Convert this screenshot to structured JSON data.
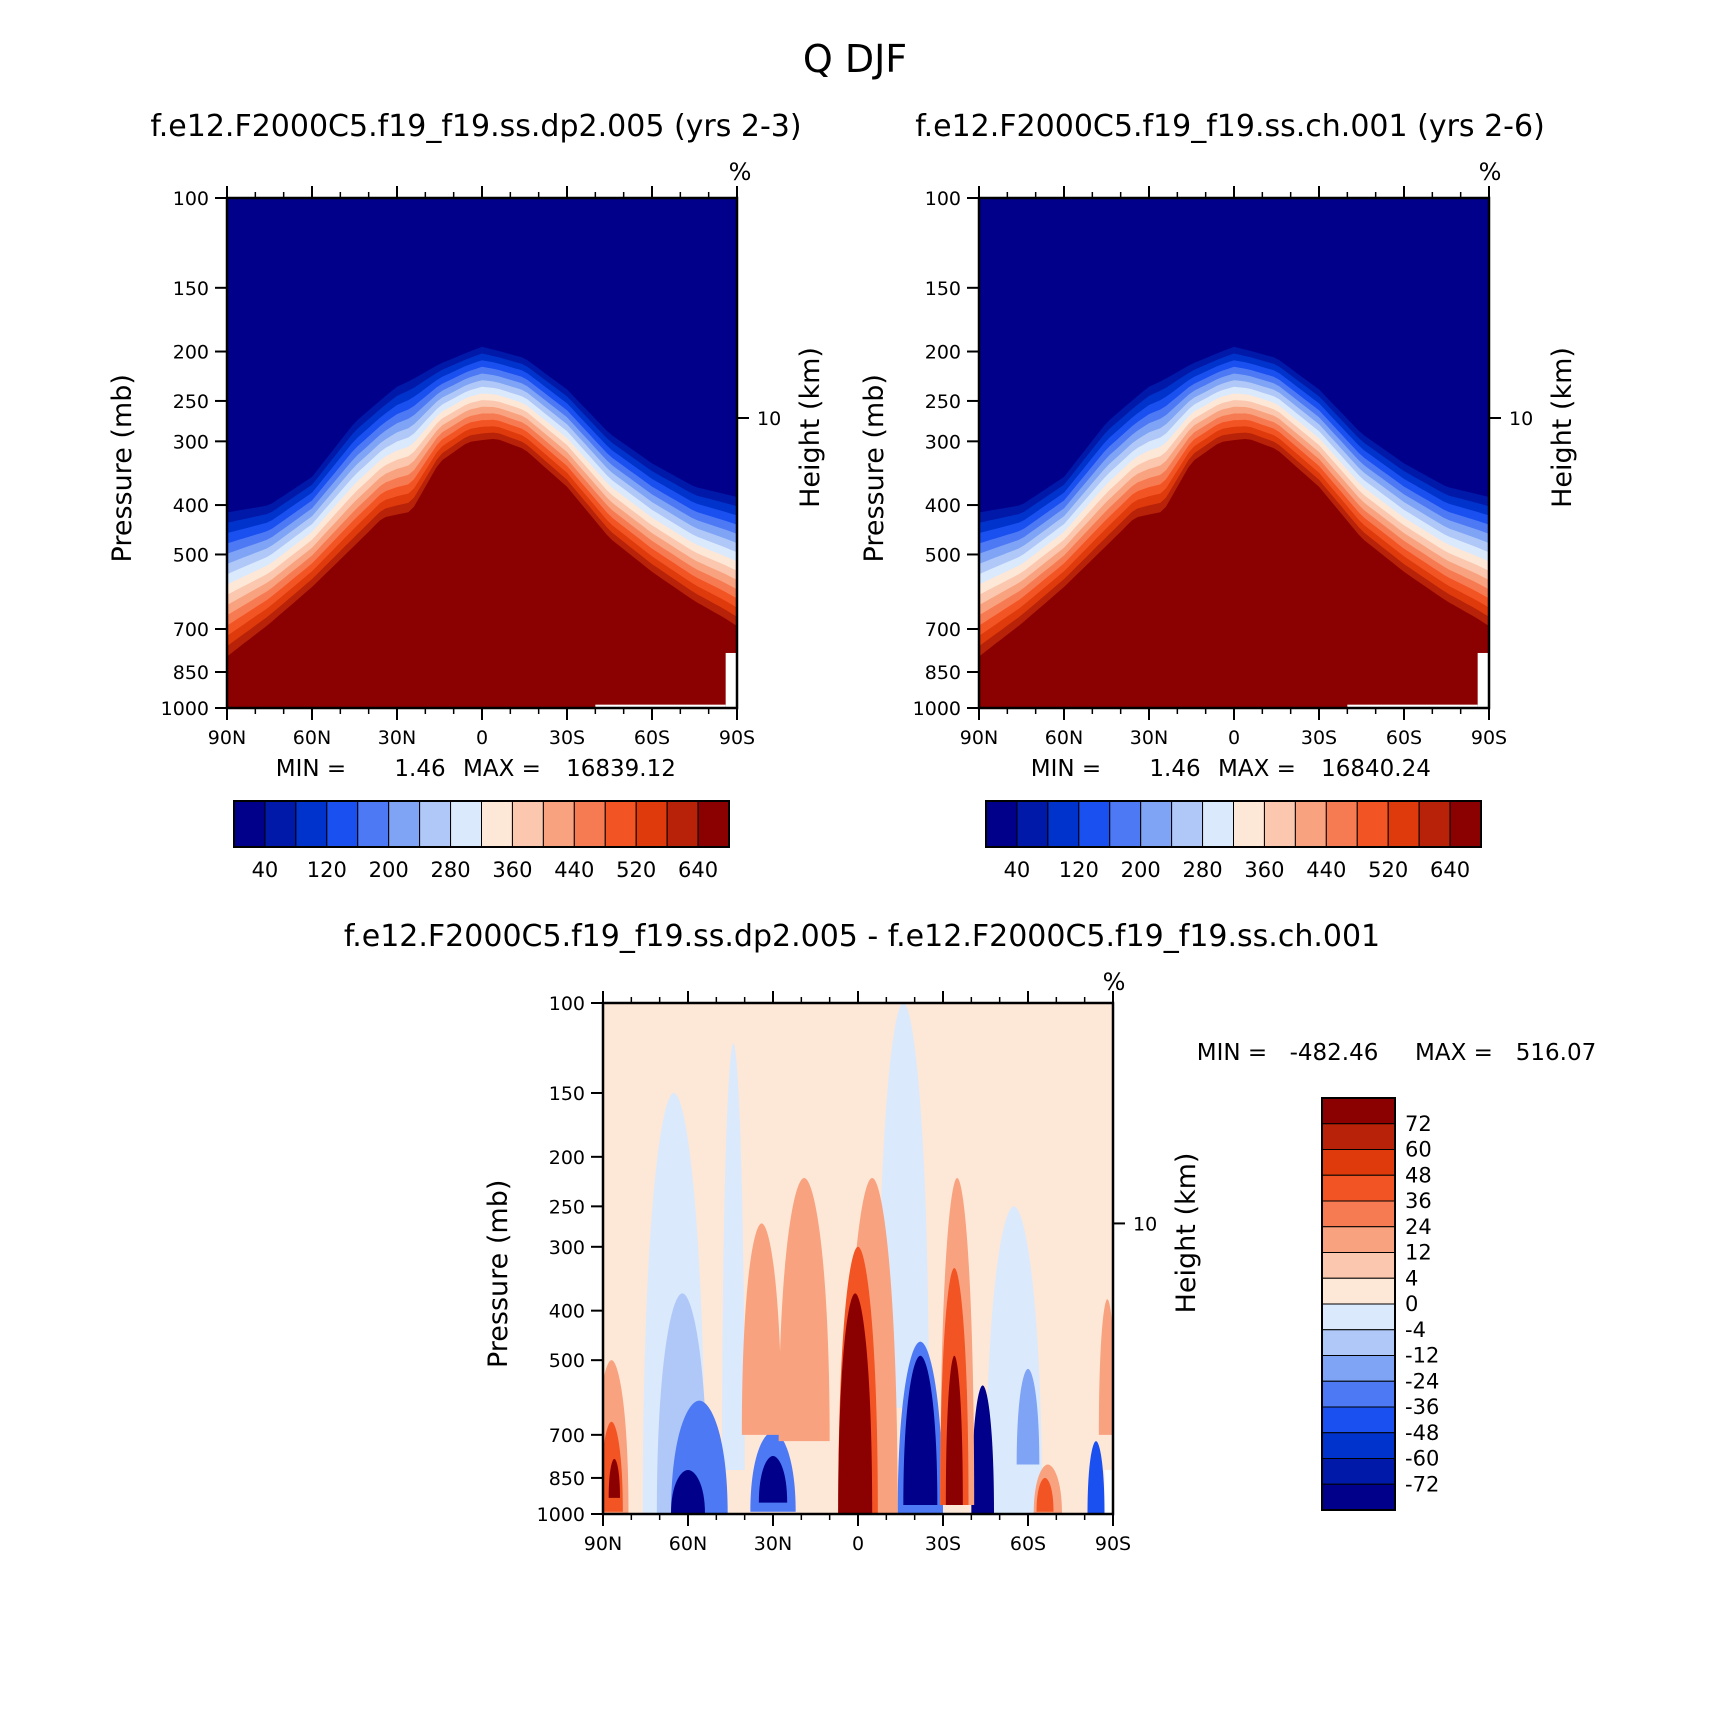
{
  "figure_title": "Q DJF",
  "chart_data": [
    {
      "type": "contour",
      "id": "left",
      "title": "f.e12.F2000C5.f19_f19.ss.dp2.005 (yrs 2-3)",
      "units": "%",
      "xlabel": "",
      "ylabel": "Pressure (mb)",
      "ylabel_right": "Height (km)",
      "x_ticks": [
        "90N",
        "60N",
        "30N",
        "0",
        "30S",
        "60S",
        "90S"
      ],
      "x_values": [
        90,
        60,
        30,
        0,
        -30,
        -60,
        -90
      ],
      "y_ticks": [
        100,
        150,
        200,
        250,
        300,
        400,
        500,
        700,
        850,
        1000
      ],
      "ylim": [
        1000,
        100
      ],
      "right_ticks": [
        {
          "label": "10",
          "pressure": 270
        }
      ],
      "min_label": "MIN =",
      "min": "1.46",
      "max_label": "MAX =",
      "max": "16839.12",
      "colorbar": {
        "orientation": "horizontal",
        "levels": [
          20,
          40,
          80,
          120,
          160,
          200,
          240,
          280,
          320,
          360,
          400,
          440,
          480,
          520,
          560,
          600,
          640
        ],
        "labels": [
          "40",
          "120",
          "200",
          "280",
          "360",
          "440",
          "520",
          "640"
        ],
        "colors": [
          "#00008b",
          "#0019a8",
          "#0033cc",
          "#1a4ff0",
          "#4d79f5",
          "#7fa3f5",
          "#b0c8f8",
          "#dbe9fc",
          "#fde8d8",
          "#fbc7ae",
          "#f9a27f",
          "#f77b52",
          "#f35424",
          "#df3a0c",
          "#b82208",
          "#8b0000"
        ]
      },
      "fields": {
        "tropo_tropopause_pressure": [
          {
            "lat": 90,
            "p": 395
          },
          {
            "lat": 75,
            "p": 385
          },
          {
            "lat": 60,
            "p": 340
          },
          {
            "lat": 45,
            "p": 265
          },
          {
            "lat": 30,
            "p": 225
          },
          {
            "lat": 15,
            "p": 205
          },
          {
            "lat": 0,
            "p": 190
          },
          {
            "lat": -15,
            "p": 200
          },
          {
            "lat": -30,
            "p": 230
          },
          {
            "lat": -45,
            "p": 280
          },
          {
            "lat": -60,
            "p": 320
          },
          {
            "lat": -75,
            "p": 355
          },
          {
            "lat": -90,
            "p": 370
          }
        ],
        "moist_boundary_pressure": [
          {
            "lat": 90,
            "p": 830
          },
          {
            "lat": 75,
            "p": 710
          },
          {
            "lat": 60,
            "p": 600
          },
          {
            "lat": 45,
            "p": 500
          },
          {
            "lat": 35,
            "p": 440
          },
          {
            "lat": 25,
            "p": 430
          },
          {
            "lat": 15,
            "p": 340
          },
          {
            "lat": 5,
            "p": 310
          },
          {
            "lat": -5,
            "p": 305
          },
          {
            "lat": -15,
            "p": 320
          },
          {
            "lat": -30,
            "p": 380
          },
          {
            "lat": -45,
            "p": 480
          },
          {
            "lat": -60,
            "p": 560
          },
          {
            "lat": -75,
            "p": 640
          },
          {
            "lat": -85,
            "p": 690
          },
          {
            "lat": -90,
            "p": 720
          }
        ],
        "transition_width": 95
      }
    },
    {
      "type": "contour",
      "id": "right",
      "title": "f.e12.F2000C5.f19_f19.ss.ch.001 (yrs 2-6)",
      "units": "%",
      "xlabel": "",
      "ylabel": "Pressure (mb)",
      "ylabel_right": "Height (km)",
      "x_ticks": [
        "90N",
        "60N",
        "30N",
        "0",
        "30S",
        "60S",
        "90S"
      ],
      "x_values": [
        90,
        60,
        30,
        0,
        -30,
        -60,
        -90
      ],
      "y_ticks": [
        100,
        150,
        200,
        250,
        300,
        400,
        500,
        700,
        850,
        1000
      ],
      "ylim": [
        1000,
        100
      ],
      "right_ticks": [
        {
          "label": "10",
          "pressure": 270
        }
      ],
      "min_label": "MIN =",
      "min": "1.46",
      "max_label": "MAX =",
      "max": "16840.24",
      "colorbar": {
        "orientation": "horizontal",
        "levels": [
          20,
          40,
          80,
          120,
          160,
          200,
          240,
          280,
          320,
          360,
          400,
          440,
          480,
          520,
          560,
          600,
          640
        ],
        "labels": [
          "40",
          "120",
          "200",
          "280",
          "360",
          "440",
          "520",
          "640"
        ],
        "colors": [
          "#00008b",
          "#0019a8",
          "#0033cc",
          "#1a4ff0",
          "#4d79f5",
          "#7fa3f5",
          "#b0c8f8",
          "#dbe9fc",
          "#fde8d8",
          "#fbc7ae",
          "#f9a27f",
          "#f77b52",
          "#f35424",
          "#df3a0c",
          "#b82208",
          "#8b0000"
        ]
      },
      "fields": {
        "tropo_tropopause_pressure": [
          {
            "lat": 90,
            "p": 395
          },
          {
            "lat": 75,
            "p": 385
          },
          {
            "lat": 60,
            "p": 340
          },
          {
            "lat": 45,
            "p": 265
          },
          {
            "lat": 30,
            "p": 225
          },
          {
            "lat": 15,
            "p": 205
          },
          {
            "lat": 0,
            "p": 190
          },
          {
            "lat": -15,
            "p": 200
          },
          {
            "lat": -30,
            "p": 230
          },
          {
            "lat": -45,
            "p": 280
          },
          {
            "lat": -60,
            "p": 320
          },
          {
            "lat": -75,
            "p": 355
          },
          {
            "lat": -90,
            "p": 370
          }
        ],
        "moist_boundary_pressure": [
          {
            "lat": 90,
            "p": 830
          },
          {
            "lat": 75,
            "p": 710
          },
          {
            "lat": 60,
            "p": 600
          },
          {
            "lat": 45,
            "p": 500
          },
          {
            "lat": 35,
            "p": 440
          },
          {
            "lat": 25,
            "p": 430
          },
          {
            "lat": 15,
            "p": 340
          },
          {
            "lat": 5,
            "p": 310
          },
          {
            "lat": -5,
            "p": 305
          },
          {
            "lat": -15,
            "p": 320
          },
          {
            "lat": -30,
            "p": 380
          },
          {
            "lat": -45,
            "p": 480
          },
          {
            "lat": -60,
            "p": 560
          },
          {
            "lat": -75,
            "p": 640
          },
          {
            "lat": -85,
            "p": 690
          },
          {
            "lat": -90,
            "p": 720
          }
        ],
        "transition_width": 95
      }
    },
    {
      "type": "contour",
      "id": "diff",
      "title": "f.e12.F2000C5.f19_f19.ss.dp2.005 - f.e12.F2000C5.f19_f19.ss.ch.001",
      "units": "%",
      "xlabel": "",
      "ylabel": "Pressure (mb)",
      "ylabel_right": "Height (km)",
      "x_ticks": [
        "90N",
        "60N",
        "30N",
        "0",
        "30S",
        "60S",
        "90S"
      ],
      "x_values": [
        90,
        60,
        30,
        0,
        -30,
        -60,
        -90
      ],
      "y_ticks": [
        100,
        150,
        200,
        250,
        300,
        400,
        500,
        700,
        850,
        1000
      ],
      "ylim": [
        1000,
        100
      ],
      "right_ticks": [
        {
          "label": "10",
          "pressure": 270
        }
      ],
      "min_label": "MIN =",
      "min": "-482.46",
      "max_label": "MAX =",
      "max": "516.07",
      "colorbar": {
        "orientation": "vertical",
        "labels": [
          "72",
          "60",
          "48",
          "36",
          "24",
          "12",
          "4",
          "0",
          "-4",
          "-12",
          "-24",
          "-36",
          "-48",
          "-60",
          "-72"
        ],
        "colors": [
          "#8b0000",
          "#b82208",
          "#df3a0c",
          "#f35424",
          "#f77b52",
          "#f9a27f",
          "#fbc7ae",
          "#fde8d8",
          "#dbe9fc",
          "#b0c8f8",
          "#7fa3f5",
          "#4d79f5",
          "#1a4ff0",
          "#0033cc",
          "#0019a8",
          "#00008b"
        ]
      },
      "fields": {
        "background_level": 4,
        "features": [
          {
            "lat": -16,
            "p_top": 100,
            "p_bot": 620,
            "half_width": 9,
            "level": -4
          },
          {
            "lat": 65,
            "p_top": 150,
            "p_bot": 1000,
            "half_width": 11,
            "level": -4
          },
          {
            "lat": 44,
            "p_top": 120,
            "p_bot": 820,
            "half_width": 4,
            "level": -4
          },
          {
            "lat": -55,
            "p_top": 250,
            "p_bot": 1000,
            "half_width": 10,
            "level": -4
          },
          {
            "lat": 62,
            "p_top": 370,
            "p_bot": 1000,
            "half_width": 9,
            "level": -12
          },
          {
            "lat": 56,
            "p_top": 600,
            "p_bot": 1000,
            "half_width": 10,
            "level": -36
          },
          {
            "lat": 60,
            "p_top": 820,
            "p_bot": 1000,
            "half_width": 6,
            "level": -72
          },
          {
            "lat": 30,
            "p_top": 690,
            "p_bot": 990,
            "half_width": 8,
            "level": -36
          },
          {
            "lat": 30,
            "p_top": 770,
            "p_bot": 950,
            "half_width": 5,
            "level": -72
          },
          {
            "lat": -22,
            "p_top": 460,
            "p_bot": 1000,
            "half_width": 8,
            "level": -36
          },
          {
            "lat": -22,
            "p_top": 490,
            "p_bot": 960,
            "half_width": 6,
            "level": -72
          },
          {
            "lat": -44,
            "p_top": 560,
            "p_bot": 1000,
            "half_width": 4,
            "level": -72
          },
          {
            "lat": -60,
            "p_top": 520,
            "p_bot": 800,
            "half_width": 4,
            "level": -24
          },
          {
            "lat": -84,
            "p_top": 720,
            "p_bot": 1000,
            "half_width": 3,
            "level": -48
          },
          {
            "lat": 34,
            "p_top": 270,
            "p_bot": 700,
            "half_width": 7,
            "level": 12
          },
          {
            "lat": 19,
            "p_top": 220,
            "p_bot": 720,
            "half_width": 9,
            "level": 12
          },
          {
            "lat": -5,
            "p_top": 220,
            "p_bot": 1000,
            "half_width": 9,
            "level": 12
          },
          {
            "lat": -35,
            "p_top": 220,
            "p_bot": 960,
            "half_width": 6,
            "level": 12
          },
          {
            "lat": 87,
            "p_top": 500,
            "p_bot": 1000,
            "half_width": 6,
            "level": 12
          },
          {
            "lat": -88,
            "p_top": 380,
            "p_bot": 700,
            "half_width": 3,
            "level": 12
          },
          {
            "lat": -67,
            "p_top": 800,
            "p_bot": 1000,
            "half_width": 5,
            "level": 12
          },
          {
            "lat": 0,
            "p_top": 300,
            "p_bot": 1000,
            "half_width": 7,
            "level": 36
          },
          {
            "lat": -34,
            "p_top": 330,
            "p_bot": 960,
            "half_width": 5,
            "level": 36
          },
          {
            "lat": 87,
            "p_top": 660,
            "p_bot": 990,
            "half_width": 4,
            "level": 36
          },
          {
            "lat": -66,
            "p_top": 850,
            "p_bot": 990,
            "half_width": 3,
            "level": 36
          },
          {
            "lat": 1,
            "p_top": 370,
            "p_bot": 1000,
            "half_width": 6,
            "level": 72
          },
          {
            "lat": -34,
            "p_top": 490,
            "p_bot": 960,
            "half_width": 3,
            "level": 72
          },
          {
            "lat": 86,
            "p_top": 780,
            "p_bot": 930,
            "half_width": 2,
            "level": 72
          }
        ],
        "missing_cells": [
          {
            "lat_from": -87,
            "lat_to": -90,
            "p_top": 820,
            "p_bot": 1000
          }
        ]
      }
    }
  ]
}
